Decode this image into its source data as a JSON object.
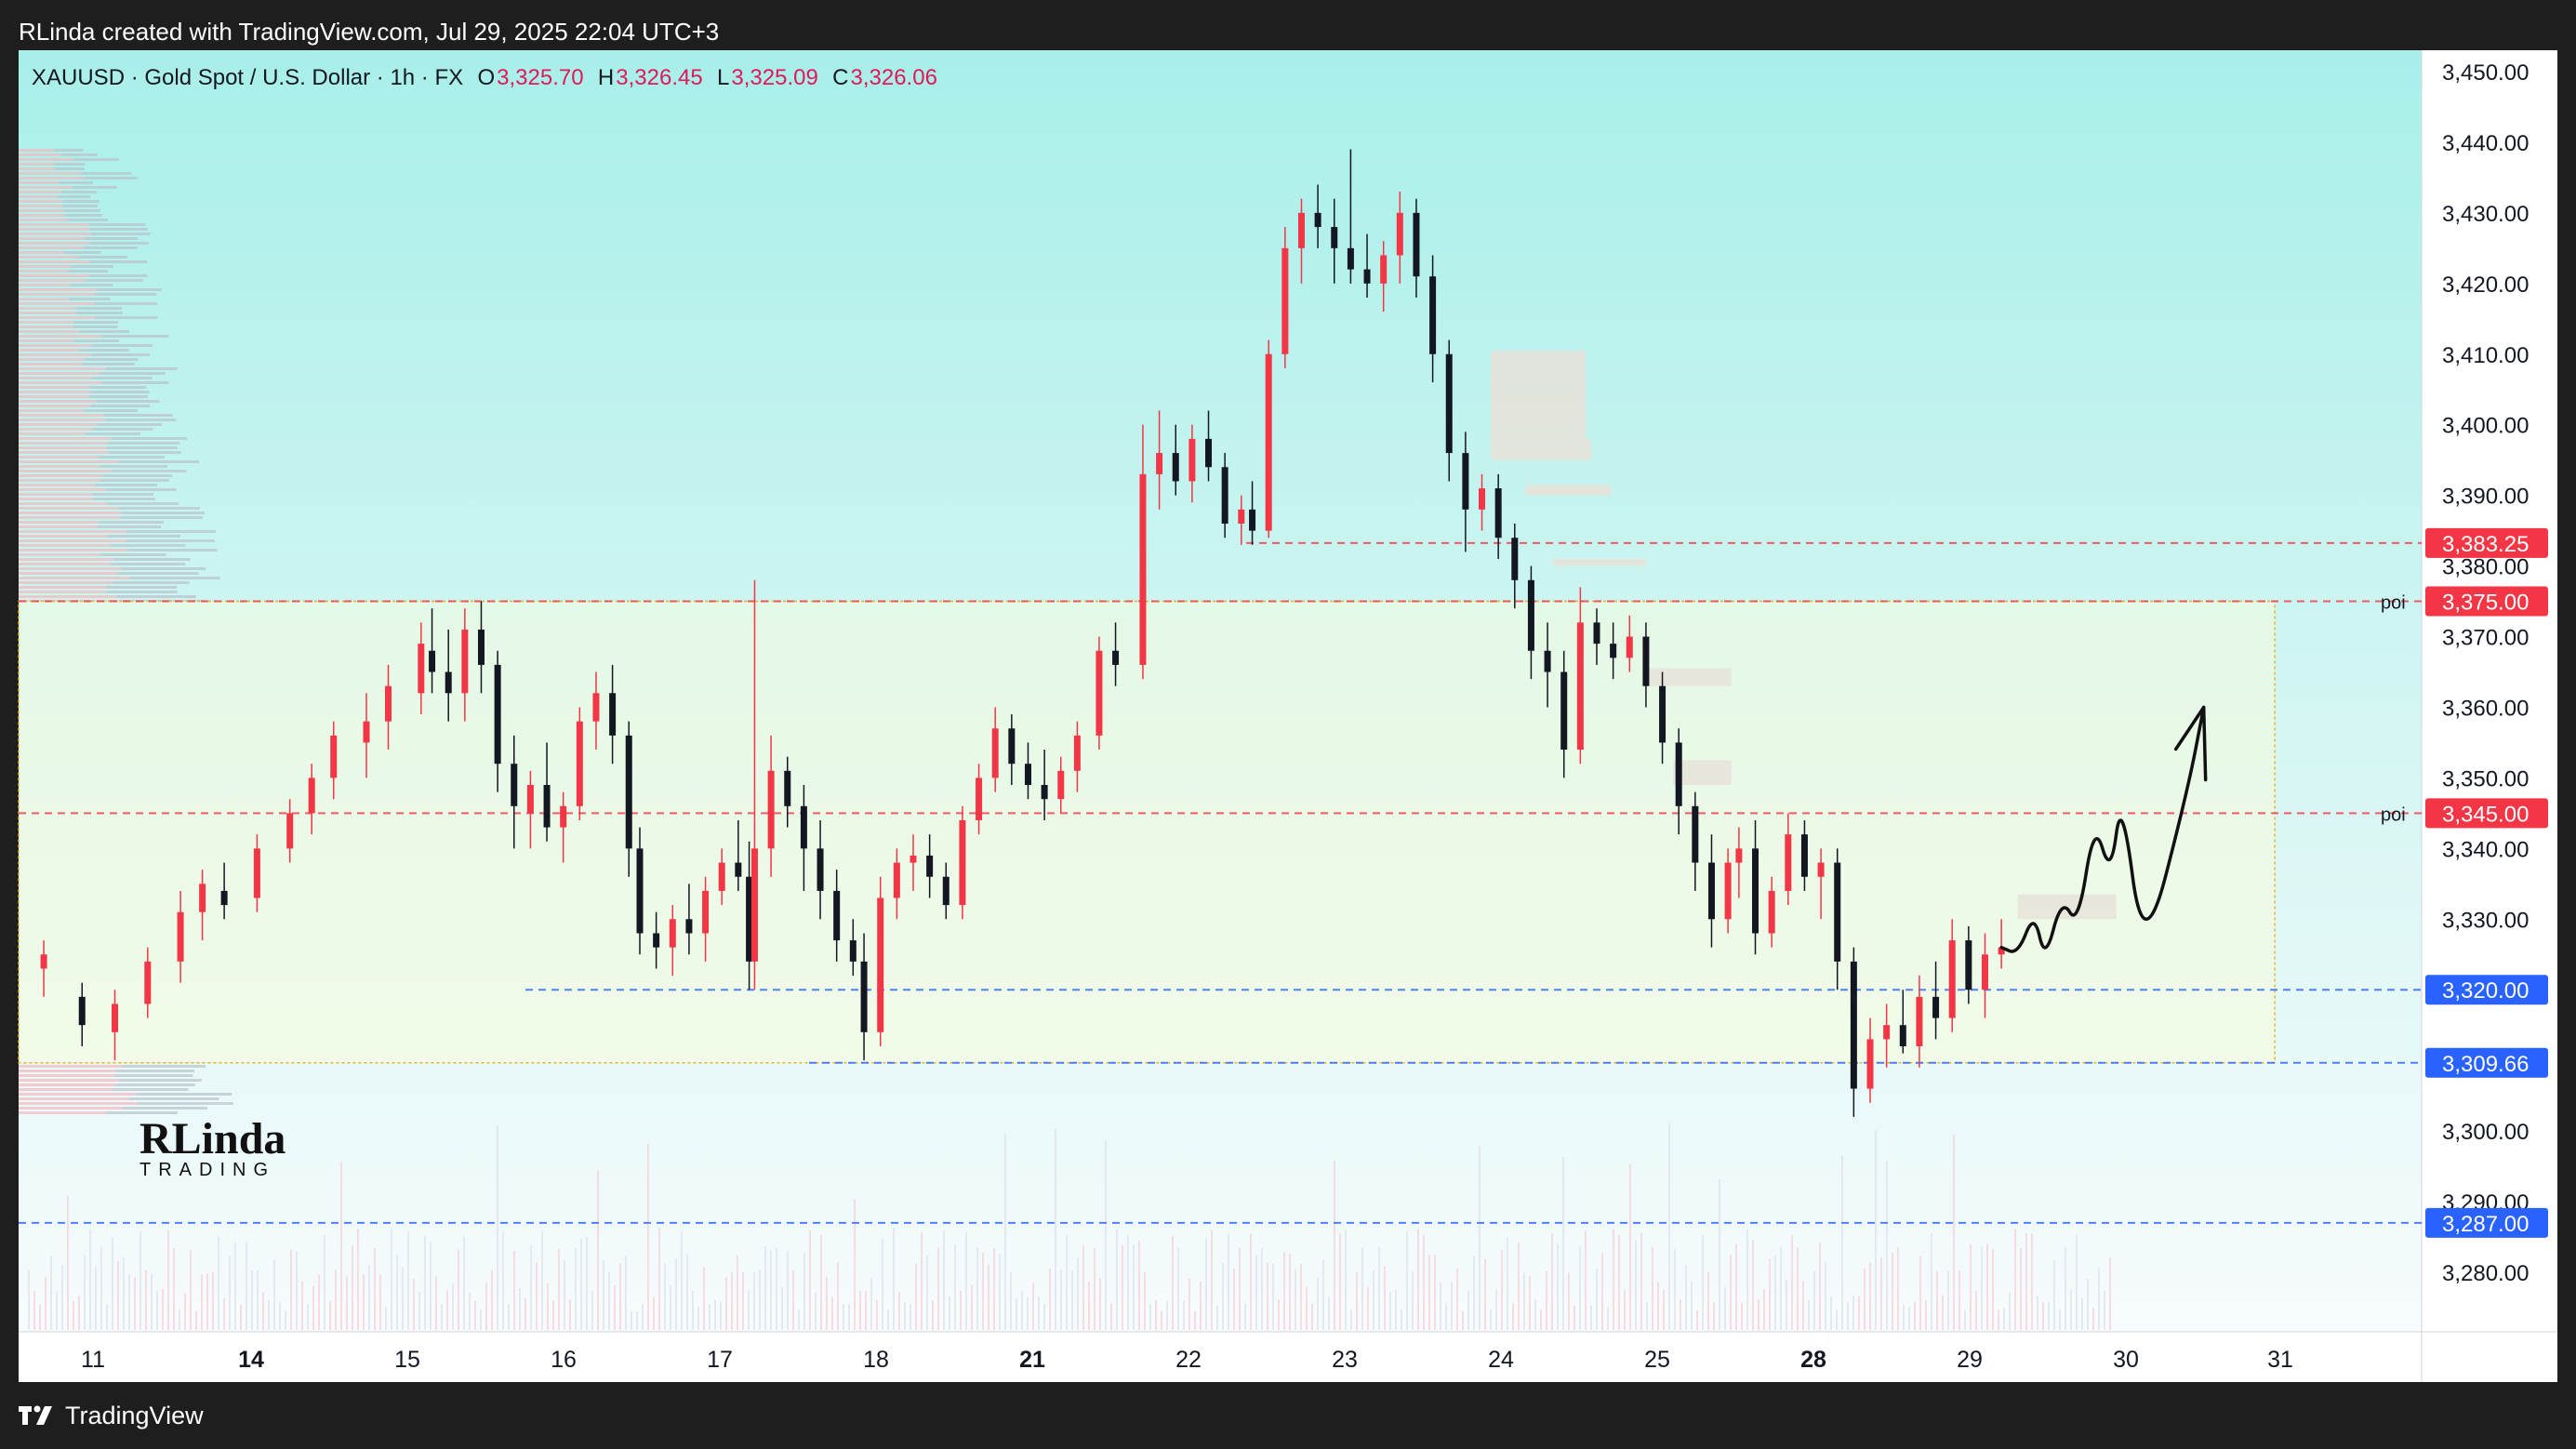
{
  "top_caption": "RLinda created with TradingView.com, Jul 29, 2025 22:04 UTC+3",
  "footer": {
    "brand": "TradingView",
    "logo_icon": "tradingview-logo-icon"
  },
  "header": {
    "symbol": "XAUUSD · Gold Spot / U.S. Dollar · 1h · FX",
    "open_label": "O",
    "open_value": "3,325.70",
    "high_label": "H",
    "high_value": "3,326.45",
    "low_label": "L",
    "low_value": "3,325.09",
    "close_label": "C",
    "close_value": "3,326.06"
  },
  "watermark": {
    "line1": "RLinda",
    "line2": "TRADING"
  },
  "colors": {
    "up": "#f23645",
    "down": "#131722",
    "red_tag": "#f23645",
    "blue_tag": "#2962ff",
    "poi_line": "#f23645",
    "support_line": "#2962ff",
    "zone_fill": "#eefbe2",
    "zone_border": "#e6b422",
    "block_fill": "#e8e2d8",
    "bg_top": "#a8efe9",
    "bg_bottom": "#f6fbfd"
  },
  "chart_data": {
    "type": "candlestick",
    "symbol": "XAUUSD",
    "timeframe": "1h",
    "ylim": [
      3274,
      3453
    ],
    "y_ticks": [
      "3,450.00",
      "3,440.00",
      "3,430.00",
      "3,420.00",
      "3,410.00",
      "3,400.00",
      "3,390.00",
      "3,380.00",
      "3,370.00",
      "3,360.00",
      "3,350.00",
      "3,340.00",
      "3,330.00",
      "3,320.00",
      "3,310.00",
      "3,300.00",
      "3,290.00",
      "3,280.00"
    ],
    "x_ticks": [
      {
        "label": "11",
        "bold": false
      },
      {
        "label": "14",
        "bold": true
      },
      {
        "label": "15",
        "bold": false
      },
      {
        "label": "16",
        "bold": false
      },
      {
        "label": "17",
        "bold": false
      },
      {
        "label": "18",
        "bold": false
      },
      {
        "label": "21",
        "bold": true
      },
      {
        "label": "22",
        "bold": false
      },
      {
        "label": "23",
        "bold": false
      },
      {
        "label": "24",
        "bold": false
      },
      {
        "label": "25",
        "bold": false
      },
      {
        "label": "28",
        "bold": true
      },
      {
        "label": "29",
        "bold": false
      },
      {
        "label": "30",
        "bold": false
      },
      {
        "label": "31",
        "bold": false
      }
    ],
    "price_levels": [
      {
        "price": 3383.25,
        "label": "3,383.25",
        "style": "red-dashed",
        "note": ""
      },
      {
        "price": 3375.0,
        "label": "3,375.00",
        "style": "red-dashed",
        "note": "poi"
      },
      {
        "price": 3345.0,
        "label": "3,345.00",
        "style": "red-dashed",
        "note": "poi"
      },
      {
        "price": 3320.0,
        "label": "3,320.00",
        "style": "blue-dashed",
        "note": ""
      },
      {
        "price": 3309.66,
        "label": "3,309.66",
        "style": "blue-dashed",
        "note": ""
      },
      {
        "price": 3287.0,
        "label": "3,287.00",
        "style": "blue-dashed",
        "note": ""
      }
    ],
    "range_zone": {
      "top": 3375.0,
      "bottom": 3309.66,
      "from_day": 10.9,
      "to_day": 30.95
    },
    "supply_blocks": [
      {
        "from_day": 23.78,
        "to_day": 24.65,
        "top": 3410.5,
        "bottom": 3398
      },
      {
        "from_day": 23.78,
        "to_day": 24.7,
        "top": 3398,
        "bottom": 3395
      },
      {
        "from_day": 24.1,
        "to_day": 24.88,
        "top": 3391.5,
        "bottom": 3390
      },
      {
        "from_day": 24.35,
        "to_day": 25.2,
        "top": 3381,
        "bottom": 3380
      },
      {
        "from_day": 25.2,
        "to_day": 25.98,
        "top": 3365.5,
        "bottom": 3363
      },
      {
        "from_day": 25.45,
        "to_day": 25.98,
        "top": 3352.5,
        "bottom": 3349
      },
      {
        "from_day": 28.6,
        "to_day": 29.5,
        "top": 3333.5,
        "bottom": 3330
      }
    ],
    "candles": [
      [
        10.55,
        3323,
        3327,
        3319,
        3325
      ],
      [
        10.9,
        3319,
        3321,
        3312,
        3315
      ],
      [
        11.2,
        3314,
        3320,
        3310,
        3318
      ],
      [
        11.5,
        3318,
        3326,
        3316,
        3324
      ],
      [
        11.8,
        3324,
        3334,
        3321,
        3331
      ],
      [
        12.0,
        3331,
        3337,
        3327,
        3335
      ],
      [
        12.2,
        3334,
        3338,
        3330,
        3332
      ],
      [
        12.5,
        3333,
        3342,
        3331,
        3340
      ],
      [
        12.8,
        3340,
        3347,
        3338,
        3345
      ],
      [
        13.0,
        3345,
        3352,
        3342,
        3350
      ],
      [
        13.2,
        3350,
        3358,
        3347,
        3356
      ],
      [
        13.5,
        3355,
        3362,
        3350,
        3358
      ],
      [
        13.7,
        3358,
        3366,
        3354,
        3363
      ],
      [
        14.0,
        3362,
        3372,
        3359,
        3369
      ],
      [
        14.1,
        3368,
        3374,
        3362,
        3365
      ],
      [
        14.25,
        3365,
        3371,
        3358,
        3362
      ],
      [
        14.4,
        3362,
        3374,
        3358,
        3371
      ],
      [
        14.55,
        3371,
        3375,
        3362,
        3366
      ],
      [
        14.7,
        3366,
        3368,
        3348,
        3352
      ],
      [
        14.85,
        3352,
        3356,
        3340,
        3346
      ],
      [
        15.0,
        3345,
        3351,
        3340,
        3349
      ],
      [
        15.15,
        3349,
        3355,
        3341,
        3343
      ],
      [
        15.3,
        3343,
        3348,
        3338,
        3346
      ],
      [
        15.45,
        3346,
        3360,
        3344,
        3358
      ],
      [
        15.6,
        3358,
        3365,
        3354,
        3362
      ],
      [
        15.75,
        3362,
        3366,
        3352,
        3356
      ],
      [
        15.9,
        3356,
        3358,
        3336,
        3340
      ],
      [
        16.0,
        3340,
        3343,
        3325,
        3328
      ],
      [
        16.15,
        3328,
        3331,
        3323,
        3326
      ],
      [
        16.3,
        3326,
        3332,
        3322,
        3330
      ],
      [
        16.45,
        3330,
        3335,
        3325,
        3328
      ],
      [
        16.6,
        3328,
        3336,
        3324,
        3334
      ],
      [
        16.75,
        3334,
        3340,
        3332,
        3338
      ],
      [
        16.9,
        3338,
        3344,
        3334,
        3336
      ],
      [
        17.0,
        3336,
        3341,
        3320,
        3324
      ],
      [
        17.05,
        3324,
        3378,
        3320,
        3340
      ],
      [
        17.2,
        3340,
        3356,
        3336,
        3351
      ],
      [
        17.35,
        3351,
        3353,
        3343,
        3346
      ],
      [
        17.5,
        3346,
        3349,
        3334,
        3340
      ],
      [
        17.65,
        3340,
        3344,
        3330,
        3334
      ],
      [
        17.8,
        3334,
        3337,
        3324,
        3327
      ],
      [
        17.95,
        3327,
        3330,
        3322,
        3324
      ],
      [
        18.05,
        3324,
        3328,
        3310,
        3314
      ],
      [
        18.2,
        3314,
        3336,
        3312,
        3333
      ],
      [
        18.35,
        3333,
        3340,
        3330,
        3338
      ],
      [
        18.5,
        3338,
        3342,
        3334,
        3339
      ],
      [
        18.65,
        3339,
        3342,
        3333,
        3336
      ],
      [
        18.8,
        3336,
        3338,
        3330,
        3332
      ],
      [
        18.95,
        3332,
        3346,
        3330,
        3344
      ],
      [
        19.1,
        3344,
        3352,
        3342,
        3350
      ],
      [
        19.25,
        3350,
        3360,
        3348,
        3357
      ],
      [
        19.4,
        3357,
        3359,
        3349,
        3352
      ],
      [
        19.55,
        3352,
        3355,
        3347,
        3349
      ],
      [
        19.7,
        3349,
        3354,
        3344,
        3347
      ],
      [
        19.85,
        3347,
        3353,
        3345,
        3351
      ],
      [
        20.0,
        3351,
        3358,
        3348,
        3356
      ],
      [
        20.2,
        3356,
        3370,
        3354,
        3368
      ],
      [
        20.35,
        3368,
        3372,
        3363,
        3366
      ],
      [
        20.6,
        3366,
        3400,
        3364,
        3393
      ],
      [
        20.75,
        3393,
        3402,
        3388,
        3396
      ],
      [
        20.9,
        3396,
        3400,
        3390,
        3392
      ],
      [
        21.05,
        3392,
        3400,
        3389,
        3398
      ],
      [
        21.2,
        3398,
        3402,
        3392,
        3394
      ],
      [
        21.35,
        3394,
        3396,
        3384,
        3386
      ],
      [
        21.5,
        3386,
        3390,
        3383,
        3388
      ],
      [
        21.6,
        3388,
        3392,
        3383,
        3385
      ],
      [
        21.75,
        3385,
        3412,
        3384,
        3410
      ],
      [
        21.9,
        3410,
        3428,
        3408,
        3425
      ],
      [
        22.05,
        3425,
        3432,
        3420,
        3430
      ],
      [
        22.2,
        3430,
        3434,
        3425,
        3428
      ],
      [
        22.35,
        3428,
        3432,
        3420,
        3425
      ],
      [
        22.5,
        3425,
        3439,
        3420,
        3422
      ],
      [
        22.65,
        3422,
        3427,
        3418,
        3420
      ],
      [
        22.8,
        3420,
        3426,
        3416,
        3424
      ],
      [
        22.95,
        3424,
        3433,
        3420,
        3430
      ],
      [
        23.1,
        3430,
        3432,
        3418,
        3421
      ],
      [
        23.25,
        3421,
        3424,
        3406,
        3410
      ],
      [
        23.4,
        3410,
        3412,
        3392,
        3396
      ],
      [
        23.55,
        3396,
        3399,
        3382,
        3388
      ],
      [
        23.7,
        3388,
        3393,
        3385,
        3391
      ],
      [
        23.85,
        3391,
        3393,
        3381,
        3384
      ],
      [
        24.0,
        3384,
        3386,
        3374,
        3378
      ],
      [
        24.15,
        3378,
        3380,
        3364,
        3368
      ],
      [
        24.3,
        3368,
        3372,
        3360,
        3365
      ],
      [
        24.45,
        3365,
        3368,
        3350,
        3354
      ],
      [
        24.6,
        3354,
        3377,
        3352,
        3372
      ],
      [
        24.75,
        3372,
        3374,
        3366,
        3369
      ],
      [
        24.9,
        3369,
        3372,
        3364,
        3367
      ],
      [
        25.05,
        3367,
        3373,
        3365,
        3370
      ],
      [
        25.2,
        3370,
        3372,
        3360,
        3363
      ],
      [
        25.35,
        3363,
        3365,
        3352,
        3355
      ],
      [
        25.5,
        3355,
        3357,
        3342,
        3346
      ],
      [
        25.65,
        3346,
        3348,
        3334,
        3338
      ],
      [
        25.8,
        3338,
        3342,
        3326,
        3330
      ],
      [
        25.95,
        3330,
        3340,
        3328,
        3338
      ],
      [
        26.05,
        3338,
        3343,
        3333,
        3340
      ],
      [
        26.2,
        3340,
        3344,
        3325,
        3328
      ],
      [
        26.35,
        3328,
        3336,
        3326,
        3334
      ],
      [
        26.5,
        3334,
        3345,
        3332,
        3342
      ],
      [
        26.65,
        3342,
        3344,
        3334,
        3336
      ],
      [
        26.8,
        3336,
        3340,
        3330,
        3338
      ],
      [
        26.95,
        3338,
        3340,
        3320,
        3324
      ],
      [
        27.1,
        3324,
        3326,
        3302,
        3306
      ],
      [
        27.25,
        3306,
        3316,
        3304,
        3313
      ],
      [
        27.4,
        3313,
        3318,
        3309,
        3315
      ],
      [
        27.55,
        3315,
        3320,
        3311,
        3312
      ],
      [
        27.7,
        3312,
        3322,
        3309,
        3319
      ],
      [
        27.85,
        3319,
        3324,
        3313,
        3316
      ],
      [
        28.0,
        3316,
        3330,
        3314,
        3327
      ],
      [
        28.15,
        3327,
        3329,
        3318,
        3320
      ],
      [
        28.3,
        3320,
        3328,
        3316,
        3325
      ],
      [
        28.45,
        3325,
        3330,
        3323,
        3326
      ]
    ],
    "projection": [
      [
        28.45,
        3326
      ],
      [
        28.6,
        3325
      ],
      [
        28.75,
        3331
      ],
      [
        28.85,
        3324
      ],
      [
        29.0,
        3333
      ],
      [
        29.15,
        3329
      ],
      [
        29.3,
        3344
      ],
      [
        29.45,
        3336
      ],
      [
        29.55,
        3348
      ],
      [
        29.75,
        3324
      ],
      [
        30.15,
        3348
      ],
      [
        30.3,
        3360
      ]
    ]
  }
}
